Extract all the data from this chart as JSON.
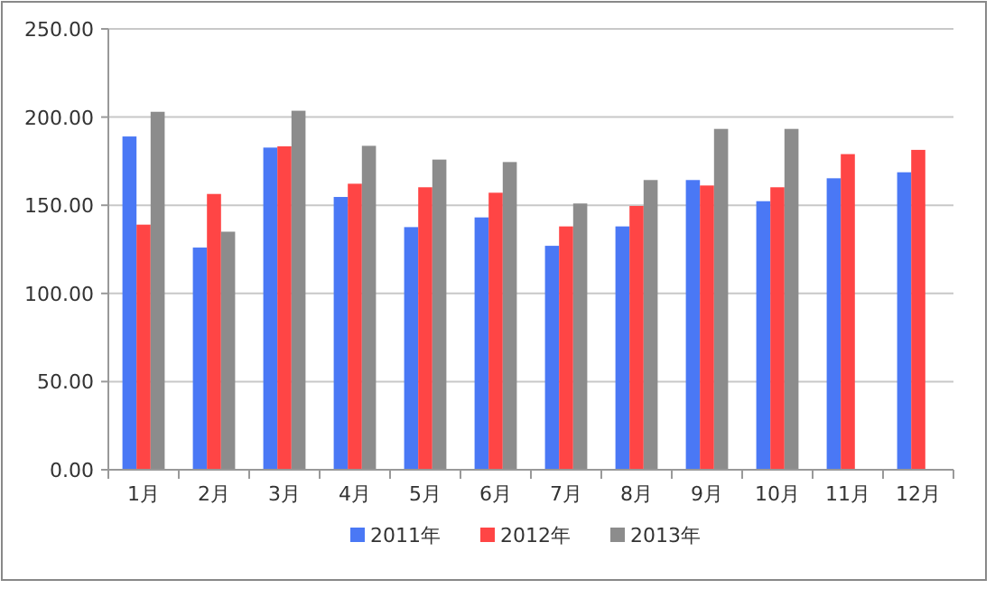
{
  "chart_data": {
    "type": "bar",
    "categories": [
      "1月",
      "2月",
      "3月",
      "4月",
      "5月",
      "6月",
      "7月",
      "8月",
      "9月",
      "10月",
      "11月",
      "12月"
    ],
    "series": [
      {
        "name": "2011年",
        "color": "#4a78f5",
        "values": [
          189,
          126,
          182.7,
          154.7,
          137.6,
          143.1,
          127,
          138,
          164.3,
          152.3,
          165.3,
          168.7
        ]
      },
      {
        "name": "2012年",
        "color": "#ff4545",
        "values": [
          139,
          156.4,
          183.4,
          162.2,
          160.2,
          157.1,
          138,
          149.6,
          161.2,
          160.2,
          179,
          181.4
        ]
      },
      {
        "name": "2013年",
        "color": "#8c8c8c",
        "values": [
          203,
          135,
          203.6,
          183.7,
          175.9,
          174.5,
          151,
          164.3,
          193.3,
          193.3,
          null,
          null
        ]
      }
    ],
    "ylim": [
      0,
      250
    ],
    "yticks": [
      {
        "value": 0,
        "label": "0.00"
      },
      {
        "value": 50,
        "label": "50.00"
      },
      {
        "value": 100,
        "label": "100.00"
      },
      {
        "value": 150,
        "label": "150.00"
      },
      {
        "value": 200,
        "label": "200.00"
      },
      {
        "value": 250,
        "label": "250.00"
      }
    ],
    "grid": "y",
    "legend": "bottom"
  }
}
